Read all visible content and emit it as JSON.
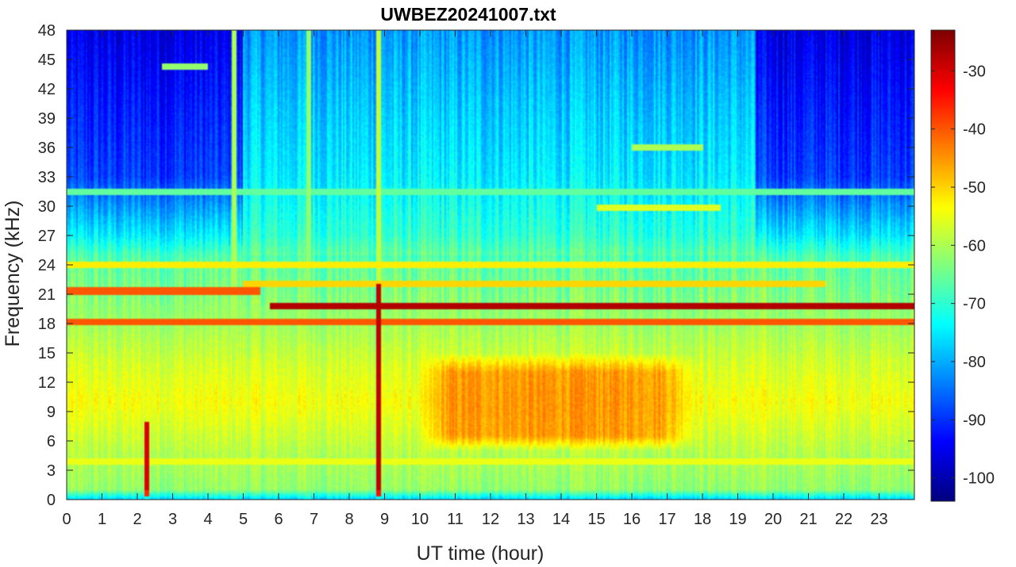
{
  "chart_data": {
    "type": "heatmap",
    "title": "UWBEZ20241007.txt",
    "xlabel": "UT time (hour)",
    "ylabel": "Frequency (kHz)",
    "xlim": [
      0,
      24
    ],
    "ylim": [
      0,
      48
    ],
    "x_ticks": [
      0,
      1,
      2,
      3,
      4,
      5,
      6,
      7,
      8,
      9,
      10,
      11,
      12,
      13,
      14,
      15,
      16,
      17,
      18,
      19,
      20,
      21,
      22,
      23
    ],
    "y_ticks": [
      0,
      3,
      6,
      9,
      12,
      15,
      18,
      21,
      24,
      27,
      30,
      33,
      36,
      39,
      42,
      45,
      48
    ],
    "colormap": "jet",
    "color_range": [
      -104,
      -23
    ],
    "colorbar_ticks": [
      -100,
      -90,
      -80,
      -70,
      -60,
      -50,
      -40,
      -30
    ],
    "grid": false,
    "features": {
      "background_level_by_frequency": [
        {
          "f": 0,
          "level": -78
        },
        {
          "f": 1,
          "level": -62
        },
        {
          "f": 4,
          "level": -60
        },
        {
          "f": 7,
          "level": -57
        },
        {
          "f": 10,
          "level": -54
        },
        {
          "f": 14,
          "level": -57
        },
        {
          "f": 18,
          "level": -61
        },
        {
          "f": 24,
          "level": -66
        },
        {
          "f": 27,
          "level": -72
        },
        {
          "f": 33,
          "level": -77
        },
        {
          "f": 40,
          "level": -80
        },
        {
          "f": 48,
          "level": -84
        }
      ],
      "night_low_high_freq_hours": [
        [
          0,
          5
        ],
        [
          19.5,
          24
        ]
      ],
      "daytime_enhancement": {
        "t_start": 10,
        "t_end": 18,
        "f_min": 5,
        "f_max": 15,
        "peak_level": -43
      },
      "transmitter_lines": [
        {
          "f": 19.8,
          "t_start": 5.75,
          "t_end": 24,
          "level": -27
        },
        {
          "f": 18.2,
          "t_start": 0,
          "t_end": 24,
          "level": -40
        },
        {
          "f": 21.3,
          "t_start": 0,
          "t_end": 5.5,
          "level": -40
        },
        {
          "f": 24.0,
          "t_start": 0,
          "t_end": 24,
          "level": -52
        },
        {
          "f": 22.0,
          "t_start": 5,
          "t_end": 21.5,
          "level": -50
        },
        {
          "f": 3.9,
          "t_start": 0,
          "t_end": 24,
          "level": -55
        },
        {
          "f": 31.5,
          "t_start": 0,
          "t_end": 24,
          "level": -66
        },
        {
          "f": 44.3,
          "t_start": 2.7,
          "t_end": 4,
          "level": -62
        },
        {
          "f": 36.0,
          "t_start": 16,
          "t_end": 18,
          "level": -60
        },
        {
          "f": 29.8,
          "t_start": 15,
          "t_end": 18.5,
          "level": -56
        }
      ],
      "broadband_events": [
        {
          "t": 2.25,
          "f_max": 8,
          "level": -30
        },
        {
          "t": 8.85,
          "f_max": 48,
          "level": -58
        },
        {
          "t": 8.85,
          "f_max": 22,
          "level": -28
        },
        {
          "t": 4.75,
          "f_max": 48,
          "level": -60
        },
        {
          "t": 6.85,
          "f_max": 48,
          "level": -62
        }
      ]
    }
  }
}
